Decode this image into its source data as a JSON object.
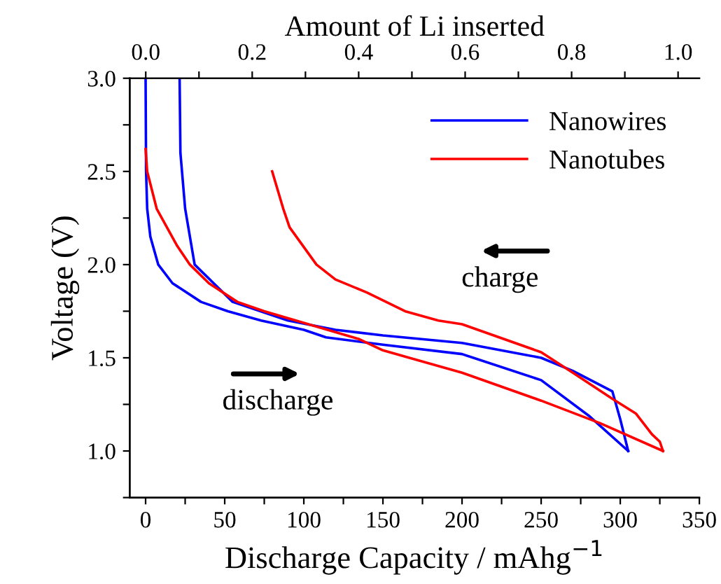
{
  "chart_data": {
    "type": "line",
    "xlabel": "Discharge Capacity / mAhg$^{−1}$",
    "ylabel": "Voltage (V)",
    "x2label": "Amount of Li inserted",
    "xlim": [
      -10,
      350
    ],
    "ylim": [
      0.75,
      3.0
    ],
    "x2lim": [
      -0.03,
      1.04
    ],
    "xticks": [
      0,
      {
        "value": 25,
        "label": null
      },
      50,
      {
        "value": 75,
        "label": null
      },
      100,
      {
        "value": 125,
        "label": null
      },
      150,
      {
        "value": 175,
        "label": null
      },
      200,
      {
        "value": 225,
        "label": null
      },
      250,
      {
        "value": 275,
        "label": null
      },
      300,
      {
        "value": 325,
        "label": null
      },
      350
    ],
    "yticks": [
      {
        "value": 0.75,
        "label": null
      },
      {
        "value": 1,
        "label": "1.0"
      },
      {
        "value": 1.25,
        "label": null
      },
      1.5,
      {
        "value": 1.75,
        "label": null
      },
      {
        "value": 2,
        "label": "2.0"
      },
      {
        "value": 2.25,
        "label": null
      },
      2.5,
      {
        "value": 2.75,
        "label": null
      },
      {
        "value": 3,
        "label": "3.0"
      }
    ],
    "x2ticks": [
      {
        "value": 0,
        "label": "0.0"
      },
      {
        "value": 0.1,
        "label": null
      },
      0.2,
      {
        "value": 0.3,
        "label": null
      },
      0.4,
      {
        "value": 0.5,
        "label": null
      },
      0.6,
      {
        "value": 0.7,
        "label": null
      },
      0.8,
      {
        "value": 0.9,
        "label": null
      },
      {
        "value": 1,
        "label": "1.0"
      }
    ],
    "grid": false,
    "legend": "top right",
    "marker": "none",
    "line_style": "solid",
    "series": [
      {
        "name": "Nanowires",
        "color": "#0000ff",
        "x": [
          0,
          0.3,
          1,
          3,
          8,
          17,
          35,
          52,
          73,
          100,
          114,
          150,
          200,
          250,
          280,
          305
        ],
        "values": [
          3.0,
          2.5,
          2.3,
          2.15,
          2.0,
          1.9,
          1.8,
          1.75,
          1.7,
          1.65,
          1.61,
          1.57,
          1.52,
          1.38,
          1.19,
          1.0
        ]
      },
      {
        "color": "#0000ff",
        "x": [
          305,
          300,
          295,
          270,
          250,
          200,
          150,
          120,
          90,
          55,
          43,
          31,
          25,
          22,
          21.5
        ],
        "values": [
          1.0,
          1.17,
          1.32,
          1.43,
          1.5,
          1.58,
          1.62,
          1.65,
          1.7,
          1.8,
          1.9,
          2.0,
          2.3,
          2.6,
          3.0
        ]
      },
      {
        "name": "Nanotubes",
        "color": "#ff0000",
        "x": [
          0,
          1,
          7,
          20,
          28,
          40,
          58,
          75,
          95,
          135,
          150,
          200,
          250,
          287,
          327
        ],
        "values": [
          2.62,
          2.5,
          2.3,
          2.1,
          2.0,
          1.9,
          1.8,
          1.75,
          1.7,
          1.6,
          1.54,
          1.42,
          1.27,
          1.15,
          1.0
        ]
      },
      {
        "color": "#ff0000",
        "x": [
          327,
          325,
          320,
          310,
          295,
          270,
          250,
          200,
          185,
          164,
          140,
          120,
          108,
          91,
          87,
          80
        ],
        "values": [
          1.0,
          1.05,
          1.09,
          1.2,
          1.28,
          1.42,
          1.53,
          1.68,
          1.7,
          1.75,
          1.85,
          1.92,
          2.0,
          2.2,
          2.3,
          2.5
        ]
      }
    ],
    "annotations": [
      "charge",
      "discharge"
    ]
  }
}
